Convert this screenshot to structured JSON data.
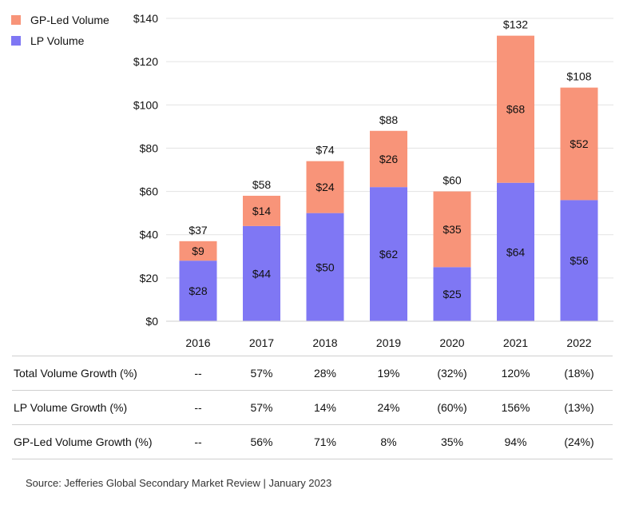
{
  "chart_data": {
    "type": "bar",
    "stacked": true,
    "categories": [
      "2016",
      "2017",
      "2018",
      "2019",
      "2020",
      "2021",
      "2022"
    ],
    "series": [
      {
        "name": "LP Volume",
        "color": "#7f77f4",
        "values": [
          28,
          44,
          50,
          62,
          25,
          64,
          56
        ],
        "labels": [
          "$28",
          "$44",
          "$50",
          "$62",
          "$25",
          "$64",
          "$56"
        ]
      },
      {
        "name": "GP-Led Volume",
        "color": "#f89479",
        "values": [
          9,
          14,
          24,
          26,
          35,
          68,
          52
        ],
        "labels": [
          "$9",
          "$14",
          "$24",
          "$26",
          "$35",
          "$68",
          "$52"
        ]
      }
    ],
    "totals": [
      37,
      58,
      74,
      88,
      60,
      132,
      108
    ],
    "total_labels": [
      "$37",
      "$58",
      "$74",
      "$88",
      "$60",
      "$132",
      "$108"
    ],
    "ylim": [
      0,
      140
    ],
    "yticks": [
      0,
      20,
      40,
      60,
      80,
      100,
      120,
      140
    ],
    "ytick_labels": [
      "$0",
      "$20",
      "$40",
      "$60",
      "$80",
      "$100",
      "$120",
      "$140"
    ],
    "grid": true,
    "legend": [
      {
        "name": "GP-Led Volume",
        "color": "#f89479"
      },
      {
        "name": "LP Volume",
        "color": "#7f77f4"
      }
    ]
  },
  "table": {
    "rows": [
      {
        "label": "Total Volume Growth (%)",
        "values": [
          "--",
          "57%",
          "28%",
          "19%",
          "(32%)",
          "120%",
          "(18%)"
        ]
      },
      {
        "label": "LP Volume Growth (%)",
        "values": [
          "--",
          "57%",
          "14%",
          "24%",
          "(60%)",
          "156%",
          "(13%)"
        ]
      },
      {
        "label": "GP-Led Volume Growth (%)",
        "values": [
          "--",
          "56%",
          "71%",
          "8%",
          "35%",
          "94%",
          "(24%)"
        ]
      }
    ]
  },
  "source": "Source: Jefferies Global Secondary Market Review  |  January 2023"
}
